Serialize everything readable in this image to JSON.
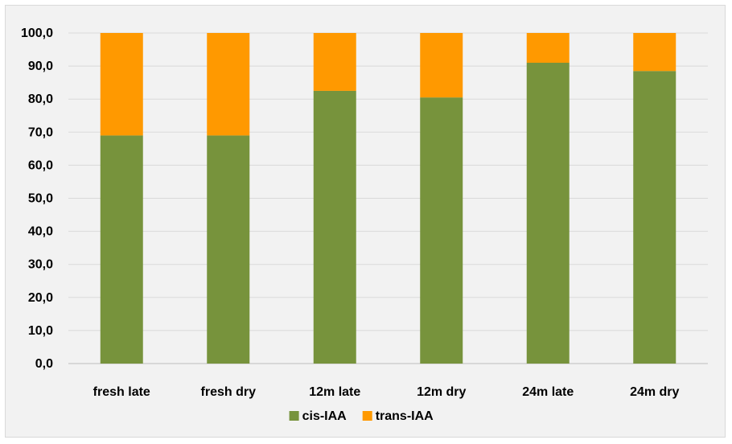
{
  "chart_data": {
    "type": "bar",
    "stacked": true,
    "categories": [
      "fresh late",
      "fresh dry",
      "12m late",
      "12m dry",
      "24m late",
      "24m dry"
    ],
    "series": [
      {
        "name": "cis-IAA",
        "color": "#77933c",
        "values": [
          69.0,
          69.0,
          82.5,
          80.5,
          91.0,
          88.5
        ]
      },
      {
        "name": "trans-IAA",
        "color": "#ff9900",
        "values": [
          31.0,
          31.0,
          17.5,
          19.5,
          9.0,
          11.5
        ]
      }
    ],
    "yticks": [
      "0,0",
      "10,0",
      "20,0",
      "30,0",
      "40,0",
      "50,0",
      "60,0",
      "70,0",
      "80,0",
      "90,0",
      "100,0"
    ],
    "ylim": [
      0,
      100
    ],
    "grid": true,
    "legend": "bottom",
    "title": "",
    "xlabel": "",
    "ylabel": ""
  }
}
